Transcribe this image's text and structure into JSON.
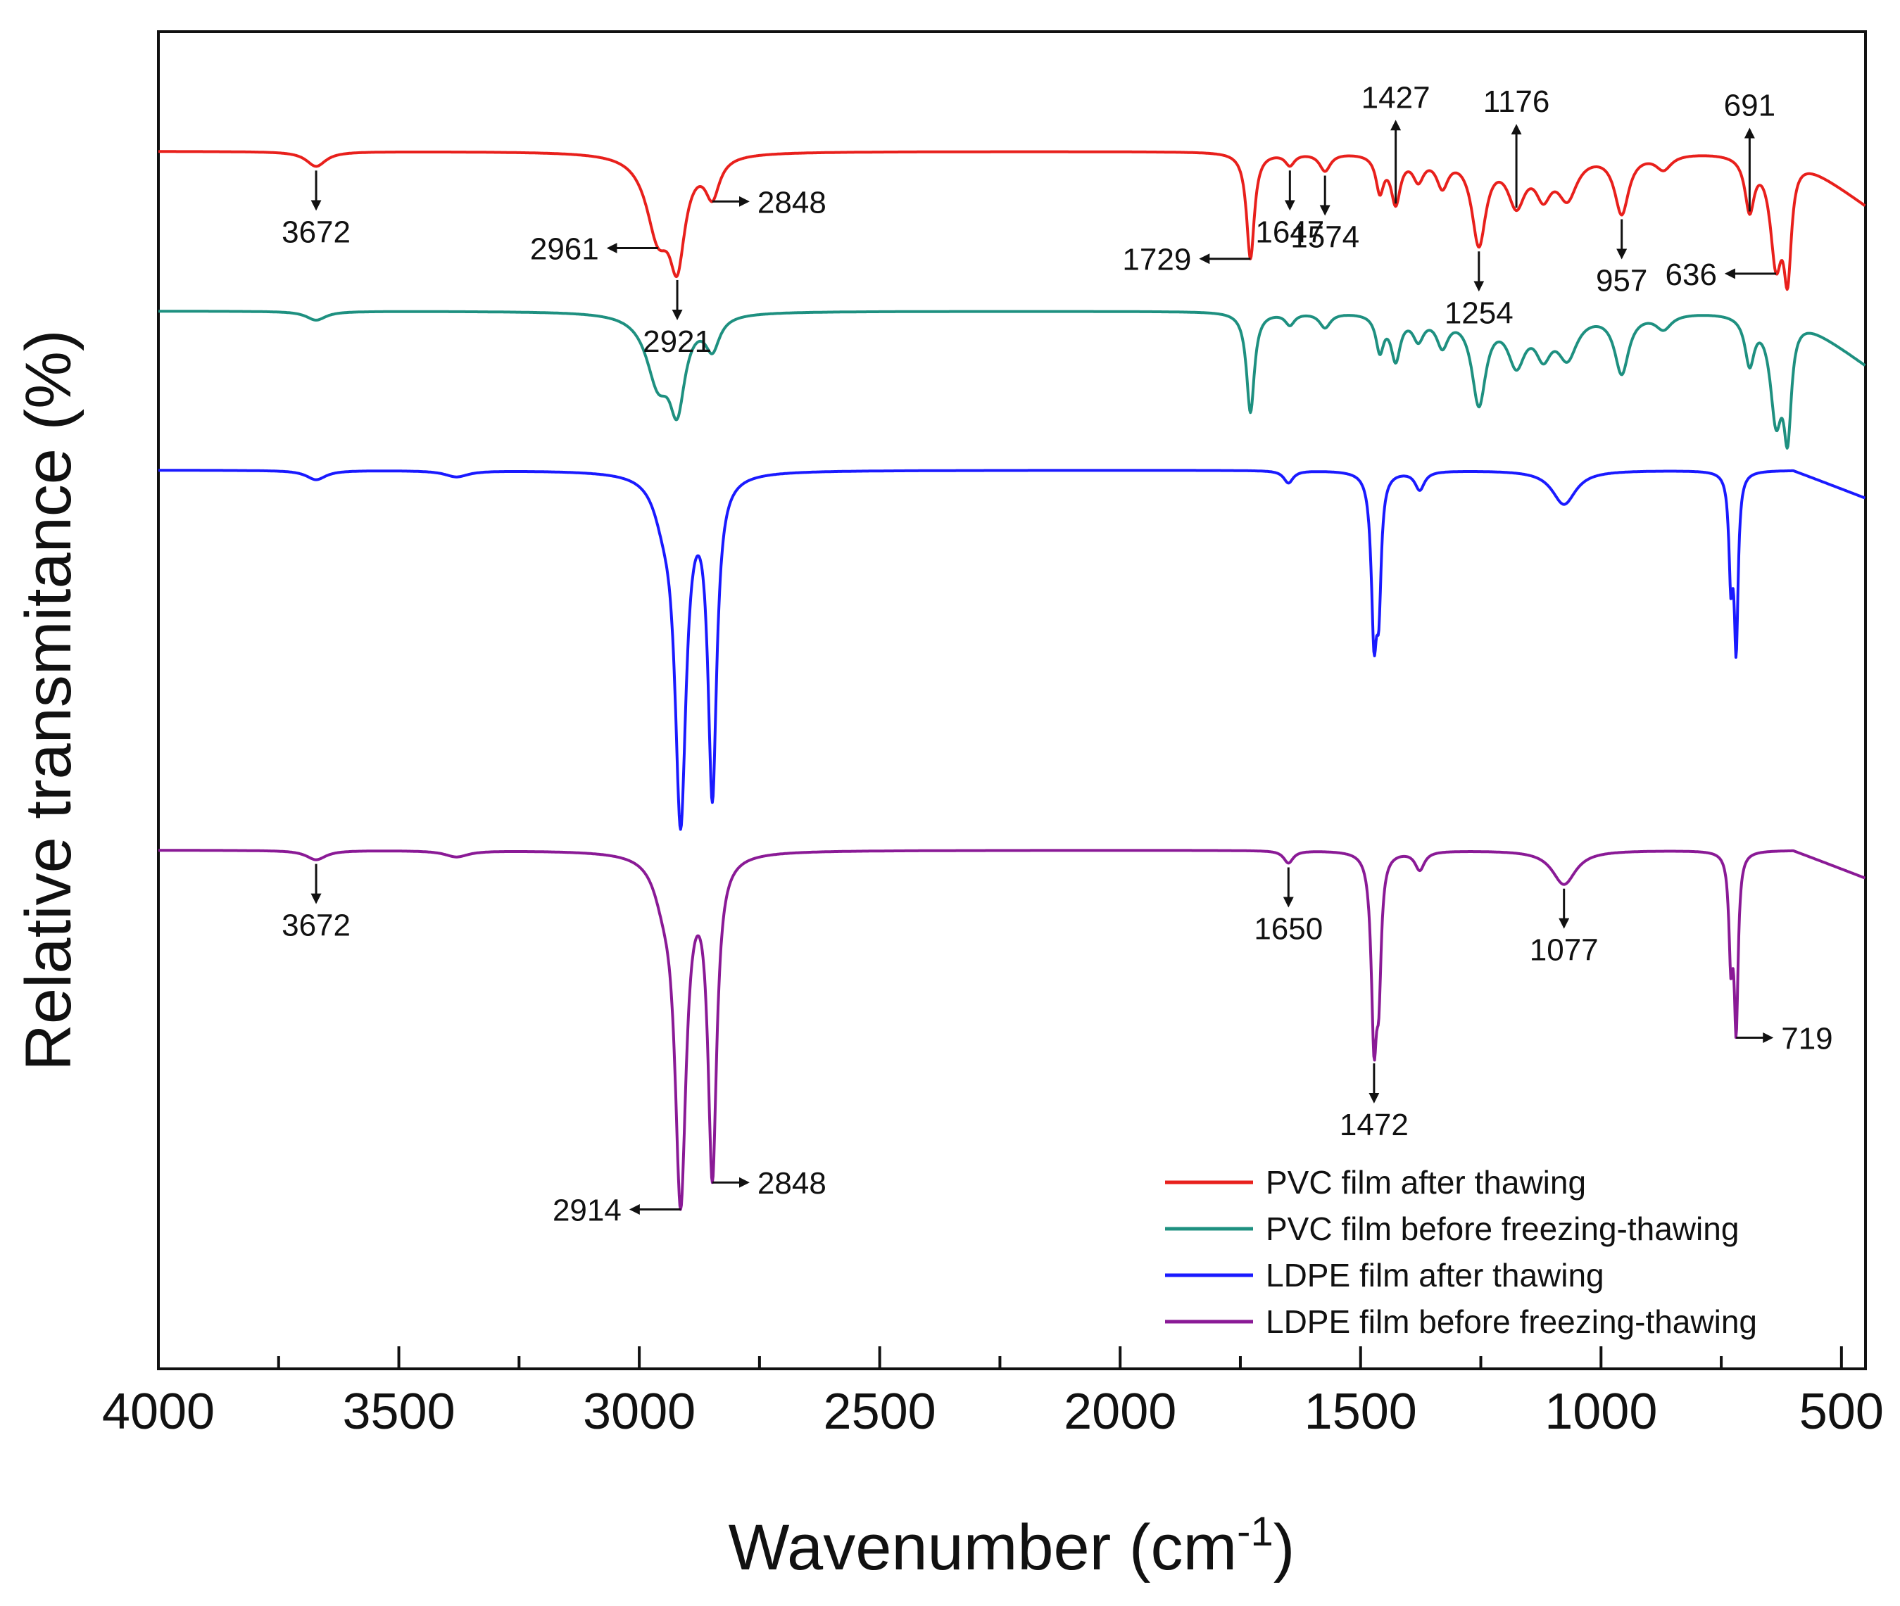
{
  "chart_data": {
    "type": "line",
    "title": "",
    "xlabel": "Wavenumber (cm",
    "xlabel_superscript": "-1",
    "xlabel_close": ")",
    "ylabel": "Relative transmitance (%)",
    "xlim": [
      4000,
      450
    ],
    "x_inverted": true,
    "x_ticks": [
      4000,
      3500,
      3000,
      2500,
      2000,
      1500,
      1000,
      500
    ],
    "x_tick_labels": [
      "4000",
      "3500",
      "3000",
      "2500",
      "2000",
      "1500",
      "1000",
      "500"
    ],
    "y_ticks_shown": false,
    "grid": false,
    "legend_position": "bottom-right",
    "series": [
      {
        "name": "PVC film after thawing",
        "color": "#e8201c",
        "baseline": 0,
        "tail": 1.8,
        "peaks": [
          [
            3672,
            0.5,
            25
          ],
          [
            2961,
            2.6,
            30
          ],
          [
            2921,
            3.2,
            20
          ],
          [
            2848,
            1.3,
            18
          ],
          [
            1729,
            3.6,
            10
          ],
          [
            1647,
            0.4,
            12
          ],
          [
            1574,
            0.6,
            14
          ],
          [
            1460,
            1.2,
            10
          ],
          [
            1427,
            1.6,
            12
          ],
          [
            1380,
            0.8,
            14
          ],
          [
            1330,
            1.0,
            15
          ],
          [
            1254,
            3.0,
            18
          ],
          [
            1176,
            1.6,
            22
          ],
          [
            1120,
            1.2,
            20
          ],
          [
            1070,
            1.4,
            25
          ],
          [
            957,
            2.0,
            18
          ],
          [
            870,
            0.5,
            20
          ],
          [
            691,
            1.8,
            12
          ],
          [
            636,
            3.5,
            15
          ],
          [
            612,
            3.6,
            10
          ]
        ],
        "annotations": [
          {
            "label": "3672",
            "x": 3672,
            "dir": "down"
          },
          {
            "label": "2961",
            "x": 2961,
            "dir": "left"
          },
          {
            "label": "2848",
            "x": 2848,
            "dir": "right"
          },
          {
            "label": "2921",
            "x": 2921,
            "dir": "down"
          },
          {
            "label": "1729",
            "x": 1729,
            "dir": "left"
          },
          {
            "label": "1647",
            "x": 1647,
            "dir": "down"
          },
          {
            "label": "1574",
            "x": 1574,
            "dir": "down"
          },
          {
            "label": "1427",
            "x": 1427,
            "dir": "up"
          },
          {
            "label": "1254",
            "x": 1254,
            "dir": "down"
          },
          {
            "label": "1176",
            "x": 1176,
            "dir": "up"
          },
          {
            "label": "957",
            "x": 957,
            "dir": "down"
          },
          {
            "label": "691",
            "x": 691,
            "dir": "up"
          },
          {
            "label": "636",
            "x": 636,
            "dir": "left"
          }
        ]
      },
      {
        "name": "PVC film before freezing-thawing",
        "color": "#1e9080",
        "baseline": 0,
        "tail": 1.8,
        "peaks": [
          [
            3672,
            0.3,
            25
          ],
          [
            2961,
            2.2,
            30
          ],
          [
            2921,
            2.8,
            20
          ],
          [
            2848,
            1.1,
            18
          ],
          [
            1729,
            3.4,
            10
          ],
          [
            1647,
            0.4,
            12
          ],
          [
            1574,
            0.5,
            14
          ],
          [
            1460,
            1.2,
            10
          ],
          [
            1427,
            1.5,
            12
          ],
          [
            1380,
            0.8,
            14
          ],
          [
            1330,
            1.0,
            15
          ],
          [
            1254,
            3.0,
            18
          ],
          [
            1176,
            1.6,
            22
          ],
          [
            1120,
            1.2,
            20
          ],
          [
            1070,
            1.4,
            25
          ],
          [
            957,
            2.0,
            18
          ],
          [
            870,
            0.5,
            20
          ],
          [
            691,
            1.6,
            12
          ],
          [
            636,
            3.4,
            15
          ],
          [
            612,
            3.6,
            10
          ]
        ],
        "annotations": []
      },
      {
        "name": "LDPE film after thawing",
        "color": "#1a1aff",
        "baseline": 0,
        "tail": 0.9,
        "peaks": [
          [
            3672,
            0.3,
            25
          ],
          [
            3380,
            0.2,
            30
          ],
          [
            2950,
            1.0,
            25
          ],
          [
            2914,
            11.0,
            14
          ],
          [
            2848,
            10.2,
            11
          ],
          [
            1650,
            0.4,
            12
          ],
          [
            1472,
            5.0,
            7
          ],
          [
            1462,
            3.5,
            6
          ],
          [
            1377,
            0.6,
            12
          ],
          [
            1077,
            1.1,
            30
          ],
          [
            730,
            3.2,
            5
          ],
          [
            719,
            5.5,
            5
          ]
        ],
        "annotations": []
      },
      {
        "name": "LDPE film before freezing-thawing",
        "color": "#8a1a96",
        "baseline": 0,
        "tail": 0.9,
        "peaks": [
          [
            3672,
            0.3,
            25
          ],
          [
            3380,
            0.2,
            30
          ],
          [
            2950,
            1.0,
            25
          ],
          [
            2914,
            11.0,
            14
          ],
          [
            2848,
            10.2,
            11
          ],
          [
            1650,
            0.4,
            12
          ],
          [
            1472,
            5.8,
            7
          ],
          [
            1462,
            3.5,
            6
          ],
          [
            1377,
            0.6,
            12
          ],
          [
            1077,
            1.1,
            30
          ],
          [
            730,
            3.2,
            5
          ],
          [
            719,
            5.5,
            5
          ]
        ],
        "annotations": [
          {
            "label": "3672",
            "x": 3672,
            "dir": "down"
          },
          {
            "label": "2914",
            "x": 2914,
            "dir": "left"
          },
          {
            "label": "2848",
            "x": 2848,
            "dir": "right"
          },
          {
            "label": "1650",
            "x": 1650,
            "dir": "down"
          },
          {
            "label": "1472",
            "x": 1472,
            "dir": "down"
          },
          {
            "label": "1077",
            "x": 1077,
            "dir": "down"
          },
          {
            "label": "719",
            "x": 719,
            "dir": "right"
          }
        ]
      }
    ]
  }
}
